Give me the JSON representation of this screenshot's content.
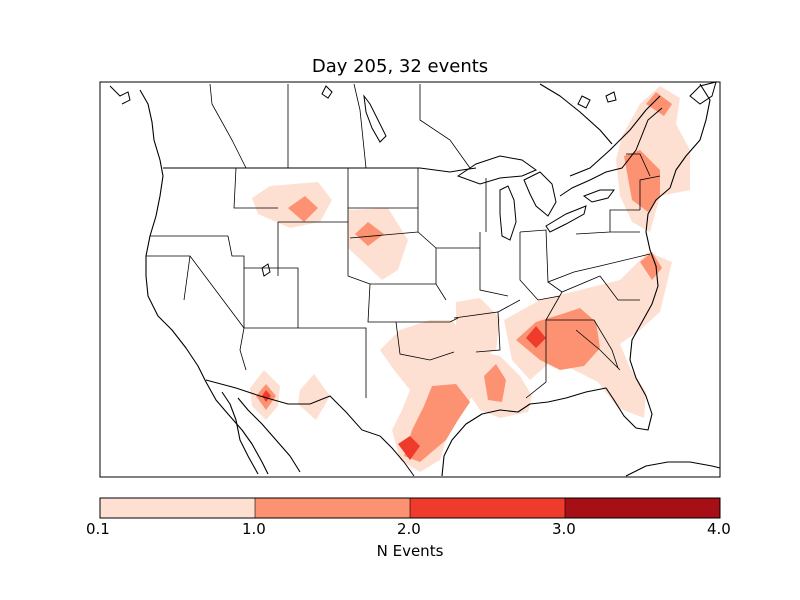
{
  "title": "Day 205, 32 events",
  "colorbar": {
    "label": "N Events",
    "tick_labels": [
      "0.1",
      "1.0",
      "2.0",
      "3.0",
      "4.0"
    ],
    "bins": [
      {
        "from": 0.1,
        "to": 1.0,
        "color": "#fee0d2"
      },
      {
        "from": 1.0,
        "to": 2.0,
        "color": "#fc9272"
      },
      {
        "from": 2.0,
        "to": 3.0,
        "color": "#ef3b2c"
      },
      {
        "from": 3.0,
        "to": 4.0,
        "color": "#a50f15"
      }
    ]
  },
  "colors": {
    "low": "#fee0d2",
    "mid": "#fc9272",
    "high": "#ef3b2c",
    "max": "#a50f15",
    "lines": "#000000"
  }
}
